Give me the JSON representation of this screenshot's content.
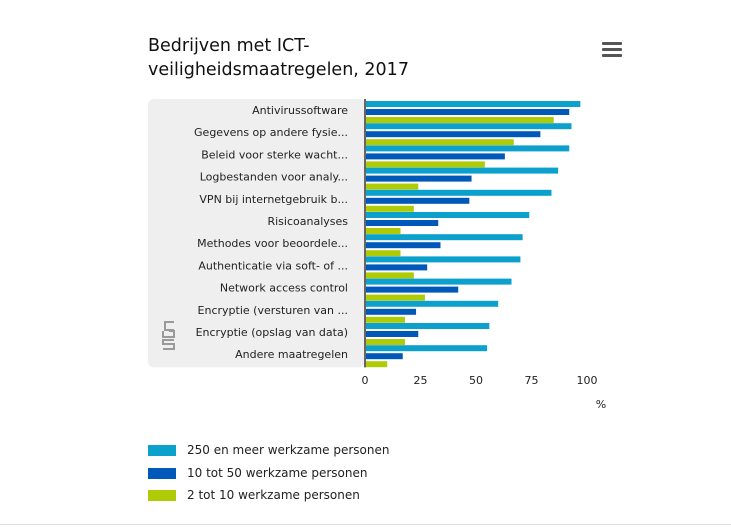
{
  "title": "Bedrijven met ICT-veiligheidsmaatregelen, 2017",
  "menu_icon": "hamburger-menu-icon",
  "logo_icon": "cbs-logo-icon",
  "colors": {
    "series": [
      "#0ba1cc",
      "#0058b8",
      "#afcb05"
    ],
    "band": "#efefef",
    "axis": "#666666"
  },
  "chart_data": {
    "type": "bar",
    "orientation": "horizontal",
    "title": "Bedrijven met ICT-veiligheidsmaatregelen, 2017",
    "xlabel": "%",
    "ylabel": "",
    "xlim": [
      0,
      100
    ],
    "xticks": [
      0,
      25,
      50,
      75,
      100
    ],
    "categories": [
      "Antivirussoftware",
      "Gegevens op andere fysie...",
      "Beleid voor sterke wacht...",
      "Logbestanden voor analy...",
      "VPN bij internetgebruik b...",
      "Risicoanalyses",
      "Methodes voor beoordele...",
      "Authenticatie via soft- of ...",
      "Network access control",
      "Encryptie (versturen van ...",
      "Encryptie (opslag van data)",
      "Andere maatregelen"
    ],
    "series": [
      {
        "name": "250 en meer werkzame personen",
        "values": [
          97,
          93,
          92,
          87,
          84,
          74,
          71,
          70,
          66,
          60,
          56,
          55
        ]
      },
      {
        "name": "10 tot 50 werkzame personen",
        "values": [
          92,
          79,
          63,
          48,
          47,
          33,
          34,
          28,
          42,
          23,
          24,
          17
        ]
      },
      {
        "name": "2 tot 10 werkzame personen",
        "values": [
          85,
          67,
          54,
          24,
          22,
          16,
          16,
          22,
          27,
          18,
          18,
          10
        ]
      }
    ],
    "grid": false,
    "legend_position": "bottom-left"
  }
}
